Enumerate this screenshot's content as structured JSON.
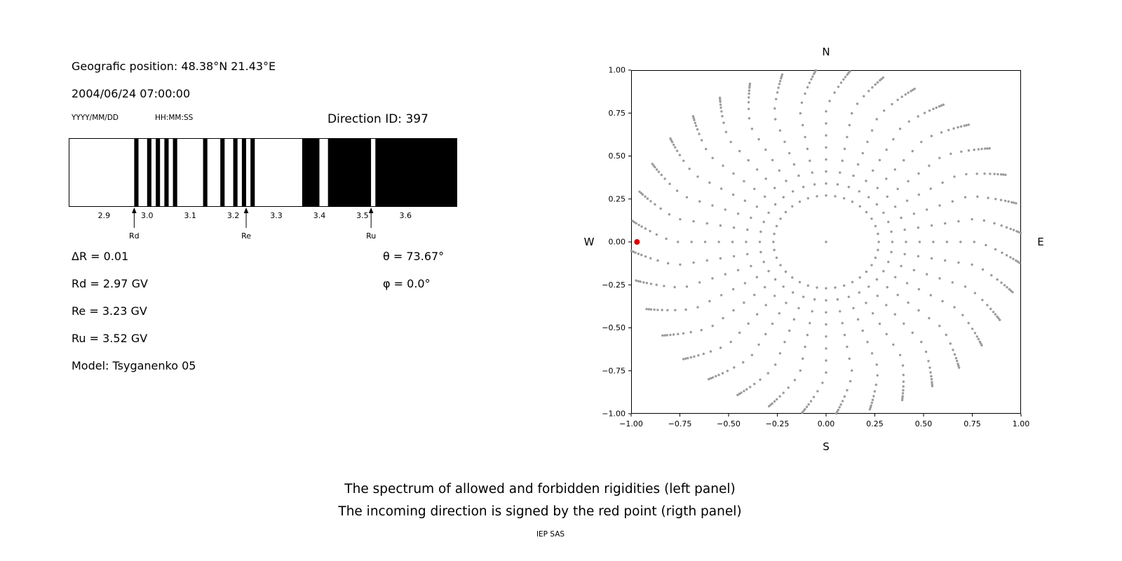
{
  "header": {
    "position_label": "Geografic position: 48.38°N 21.43°E",
    "datetime": "2004/06/24 07:00:00",
    "date_format_hint": "YYYY/MM/DD",
    "time_format_hint": "HH:MM:SS",
    "direction_id_label": "Direction ID: 397"
  },
  "left_info": {
    "delta_r": "ΔR = 0.01",
    "rd": "Rd = 2.97 GV",
    "re": "Re = 3.23 GV",
    "ru": "Ru = 3.52 GV",
    "model": "Model: Tsyganenko 05",
    "theta": "θ = 73.67°",
    "phi": "φ = 0.0°"
  },
  "caption": {
    "line1": "The spectrum of allowed and forbidden rigidities (left panel)",
    "line2": "The incoming direction is signed by the red point (rigth panel)",
    "credit": "IEP SAS"
  },
  "chart_data": [
    {
      "name": "rigidity-spectrum",
      "type": "bar",
      "title": "",
      "xlabel": "",
      "xlim": [
        2.818,
        3.72
      ],
      "xticks": [
        2.9,
        3.0,
        3.1,
        3.2,
        3.3,
        3.4,
        3.5,
        3.6
      ],
      "xtick_labels": [
        "2.9",
        "3.0",
        "3.1",
        "3.2",
        "3.3",
        "3.4",
        "3.5",
        "3.6"
      ],
      "background": "#ffffff",
      "bar_color": "#000000",
      "delta_r_gv": 0.01,
      "black_segments_gv": [
        [
          2.97,
          2.98
        ],
        [
          3.0,
          3.01
        ],
        [
          3.02,
          3.03
        ],
        [
          3.04,
          3.05
        ],
        [
          3.06,
          3.07
        ],
        [
          3.13,
          3.14
        ],
        [
          3.17,
          3.18
        ],
        [
          3.2,
          3.21
        ],
        [
          3.22,
          3.23
        ],
        [
          3.24,
          3.25
        ],
        [
          3.36,
          3.4
        ],
        [
          3.42,
          3.52
        ],
        [
          3.53,
          3.72
        ]
      ],
      "markers": [
        {
          "label": "Rd",
          "value_gv": 2.97
        },
        {
          "label": "Re",
          "value_gv": 3.23
        },
        {
          "label": "Ru",
          "value_gv": 3.52
        }
      ]
    },
    {
      "name": "direction-map",
      "type": "scatter",
      "xlim": [
        -1.0,
        1.0
      ],
      "ylim": [
        -1.0,
        1.0
      ],
      "grid": false,
      "xticks": [
        -1.0,
        -0.75,
        -0.5,
        -0.25,
        0.0,
        0.25,
        0.5,
        0.75,
        1.0
      ],
      "xtick_labels": [
        "−1.00",
        "−0.75",
        "−0.50",
        "−0.25",
        "0.00",
        "0.25",
        "0.50",
        "0.75",
        "1.00"
      ],
      "yticks": [
        -1.0,
        -0.75,
        -0.5,
        -0.25,
        0.0,
        0.25,
        0.5,
        0.75,
        1.0
      ],
      "ytick_labels": [
        "−1.00",
        "−0.75",
        "−0.50",
        "−0.25",
        "0.00",
        "0.25",
        "0.50",
        "0.75",
        "1.00"
      ],
      "compass": {
        "top": "N",
        "bottom": "S",
        "left": "W",
        "right": "E"
      },
      "dot_color": "#9b9b9b",
      "center_dot": true,
      "spokes": {
        "count": 36,
        "step_deg": 10,
        "radii": [
          0.27,
          0.34,
          0.41,
          0.48,
          0.55,
          0.62,
          0.69,
          0.76,
          0.82,
          0.87,
          0.905,
          0.93,
          0.95,
          0.965,
          0.98,
          0.99,
          1.0
        ],
        "tail_twist_deg": -7,
        "twist_start_r": 0.78
      },
      "red_point": {
        "x": -0.97,
        "y": 0.0,
        "color": "#dd0000",
        "label": "incoming direction"
      }
    }
  ]
}
